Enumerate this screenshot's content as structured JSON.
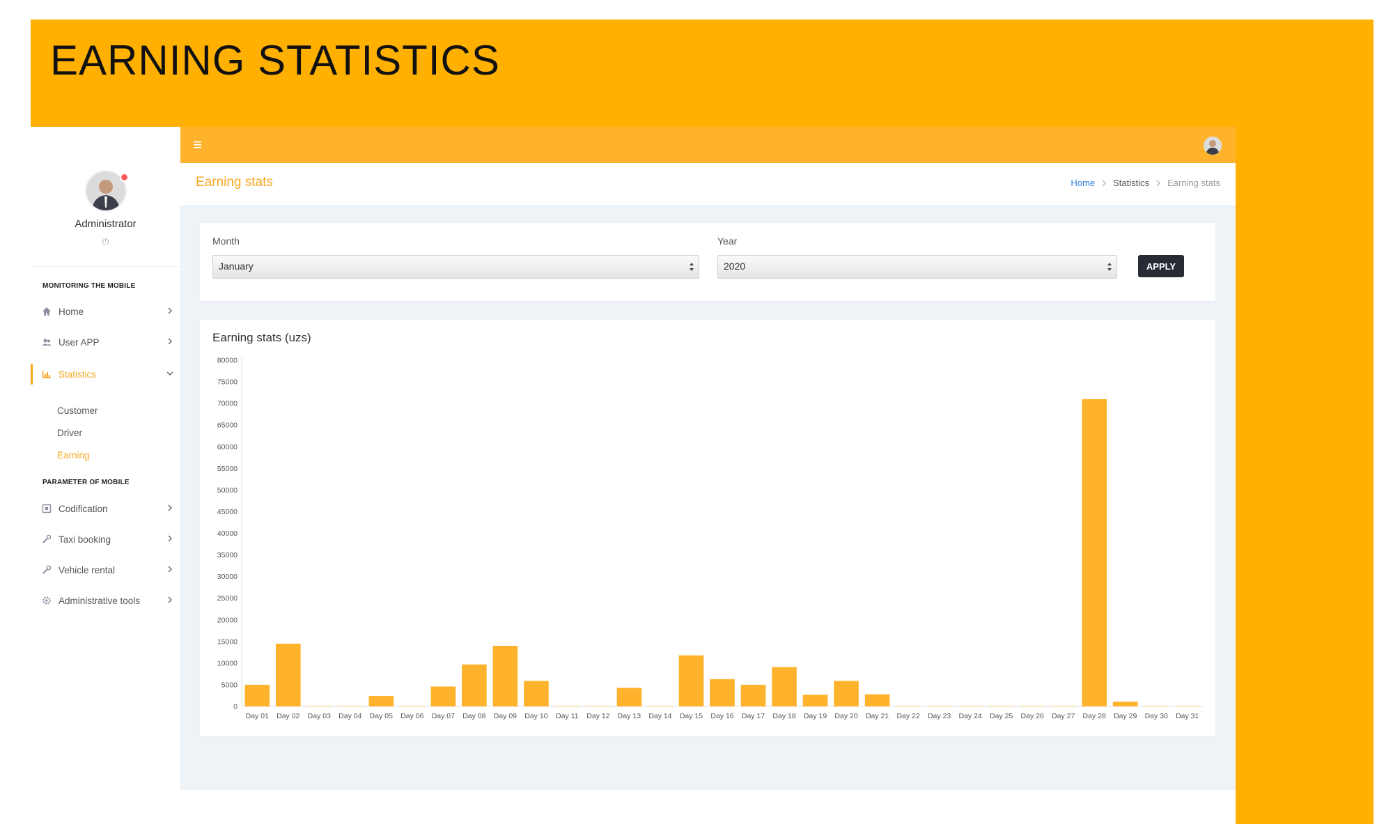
{
  "banner": {
    "title": "EARNING STATISTICS"
  },
  "profile": {
    "name": "Administrator",
    "power_icon": "⏻"
  },
  "sidebar": {
    "sections": [
      {
        "label": "MONITORING THE MOBILE"
      },
      {
        "label": "PARAMETER OF MOBILE"
      }
    ],
    "items": [
      {
        "label": "Home",
        "icon": "home-icon"
      },
      {
        "label": "User APP",
        "icon": "users-icon"
      },
      {
        "label": "Statistics",
        "icon": "bar-chart-icon"
      },
      {
        "label": "Codification",
        "icon": "codification-icon"
      },
      {
        "label": "Taxi booking",
        "icon": "wrench-icon"
      },
      {
        "label": "Vehicle rental",
        "icon": "wrench-icon"
      },
      {
        "label": "Administrative tools",
        "icon": "gear-icon"
      }
    ],
    "subitems": [
      {
        "label": "Customer"
      },
      {
        "label": "Driver"
      },
      {
        "label": "Earning"
      }
    ],
    "active_item": "Statistics",
    "active_subitem": "Earning"
  },
  "page": {
    "title": "Earning stats"
  },
  "breadcrumb": {
    "home": "Home",
    "mid": "Statistics",
    "current": "Earning stats"
  },
  "filters": {
    "month_label": "Month",
    "month_value": "January",
    "year_label": "Year",
    "year_value": "2020",
    "apply_label": "APPLY"
  },
  "colors": {
    "accent": "#f7a823",
    "bar": "#ffb32c",
    "banner": "#ffb000",
    "link": "#2f7fe0"
  },
  "chart_data": {
    "type": "bar",
    "title": "Earning stats (uzs)",
    "xlabel": "",
    "ylabel": "",
    "ylim": [
      0,
      80000
    ],
    "yticks": [
      0,
      5000,
      10000,
      15000,
      20000,
      25000,
      30000,
      35000,
      40000,
      45000,
      50000,
      55000,
      60000,
      65000,
      70000,
      75000,
      80000
    ],
    "grid": false,
    "legend": "none",
    "categories": [
      "Day 01",
      "Day 02",
      "Day 03",
      "Day 04",
      "Day 05",
      "Day 06",
      "Day 07",
      "Day 08",
      "Day 09",
      "Day 10",
      "Day 11",
      "Day 12",
      "Day 13",
      "Day 14",
      "Day 15",
      "Day 16",
      "Day 17",
      "Day 18",
      "Day 19",
      "Day 20",
      "Day 21",
      "Day 22",
      "Day 23",
      "Day 24",
      "Day 25",
      "Day 26",
      "Day 27",
      "Day 28",
      "Day 29",
      "Day 30",
      "Day 31"
    ],
    "values": [
      5000,
      14500,
      100,
      100,
      2400,
      100,
      4600,
      9700,
      14000,
      5900,
      100,
      100,
      4300,
      100,
      11800,
      6300,
      5000,
      9100,
      2700,
      5900,
      2800,
      100,
      100,
      100,
      100,
      100,
      100,
      71000,
      1100,
      100,
      100
    ]
  }
}
